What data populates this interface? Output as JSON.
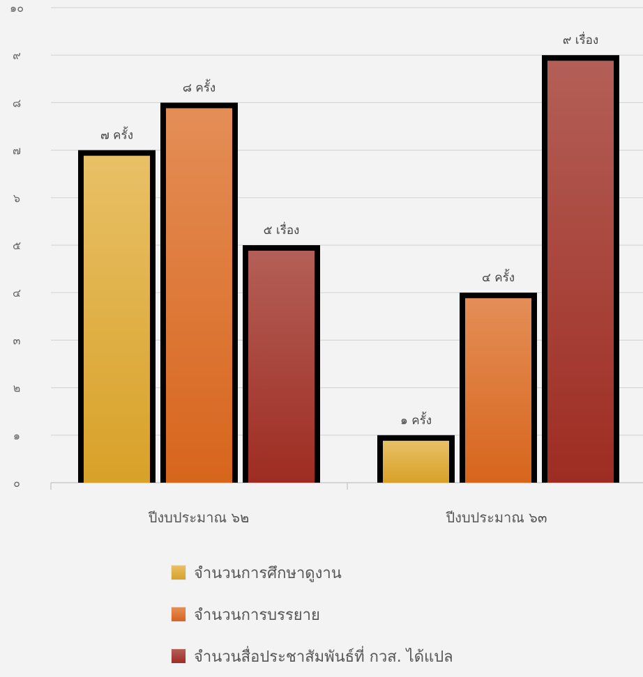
{
  "chart_data": {
    "type": "bar",
    "categories": [
      "ปีงบประมาณ ๖๒",
      "ปีงบประมาณ ๖๓"
    ],
    "y_ticks": [
      "๐",
      "๑",
      "๒",
      "๓",
      "๔",
      "๕",
      "๖",
      "๗",
      "๘",
      "๙",
      "๑๐"
    ],
    "ylim": [
      0,
      10
    ],
    "grid": true,
    "legend_position": "bottom",
    "series": [
      {
        "name": "จำนวนการศึกษาดูงาน",
        "values": [
          7,
          1
        ],
        "labels": [
          "๗ ครั้ง",
          "๑ ครั้ง"
        ],
        "color_top": "#e8c066",
        "color_bottom": "#d8a128",
        "swatch": "#e3b33c"
      },
      {
        "name": "จำนวนการบรรยาย",
        "values": [
          8,
          4
        ],
        "labels": [
          "๘ ครั้ง",
          "๔ ครั้ง"
        ],
        "color_top": "#e48e57",
        "color_bottom": "#d7651c",
        "swatch": "#e0782f"
      },
      {
        "name": "จำนวนสื่อประชาสัมพันธ์ที่ กวส. ได้แปล",
        "values": [
          5,
          9
        ],
        "labels": [
          "๕ เรื่อง",
          "๙ เรื่อง"
        ],
        "color_top": "#b35f57",
        "color_bottom": "#9e2c22",
        "swatch": "#a8352c"
      }
    ]
  }
}
